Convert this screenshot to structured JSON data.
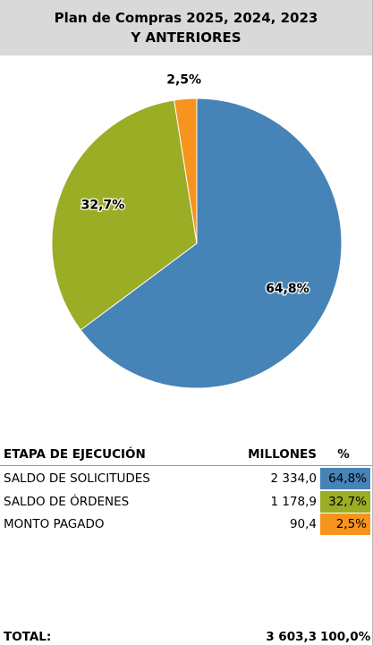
{
  "chart_data": {
    "type": "pie",
    "title": "Plan de Compras 2025, 2024, 2023 Y ANTERIORES",
    "values": [
      64.8,
      32.7,
      2.5
    ],
    "value_labels": [
      "64,8%",
      "32,7%",
      "2,5%"
    ],
    "colors": [
      "#4683b7",
      "#9aad24",
      "#f7941d"
    ]
  },
  "table": {
    "headers": [
      "ETAPA DE EJECUCIÓN",
      "MILLONES",
      "%"
    ],
    "rows": [
      [
        "SALDO DE SOLICITUDES",
        "2 334,0",
        "64,8%"
      ],
      [
        "SALDO DE ÓRDENES",
        "1 178,9",
        "32,7%"
      ],
      [
        "MONTO PAGADO",
        "90,4",
        "2,5%"
      ]
    ],
    "total": [
      "TOTAL:",
      "3 603,3",
      "100,0%"
    ]
  }
}
